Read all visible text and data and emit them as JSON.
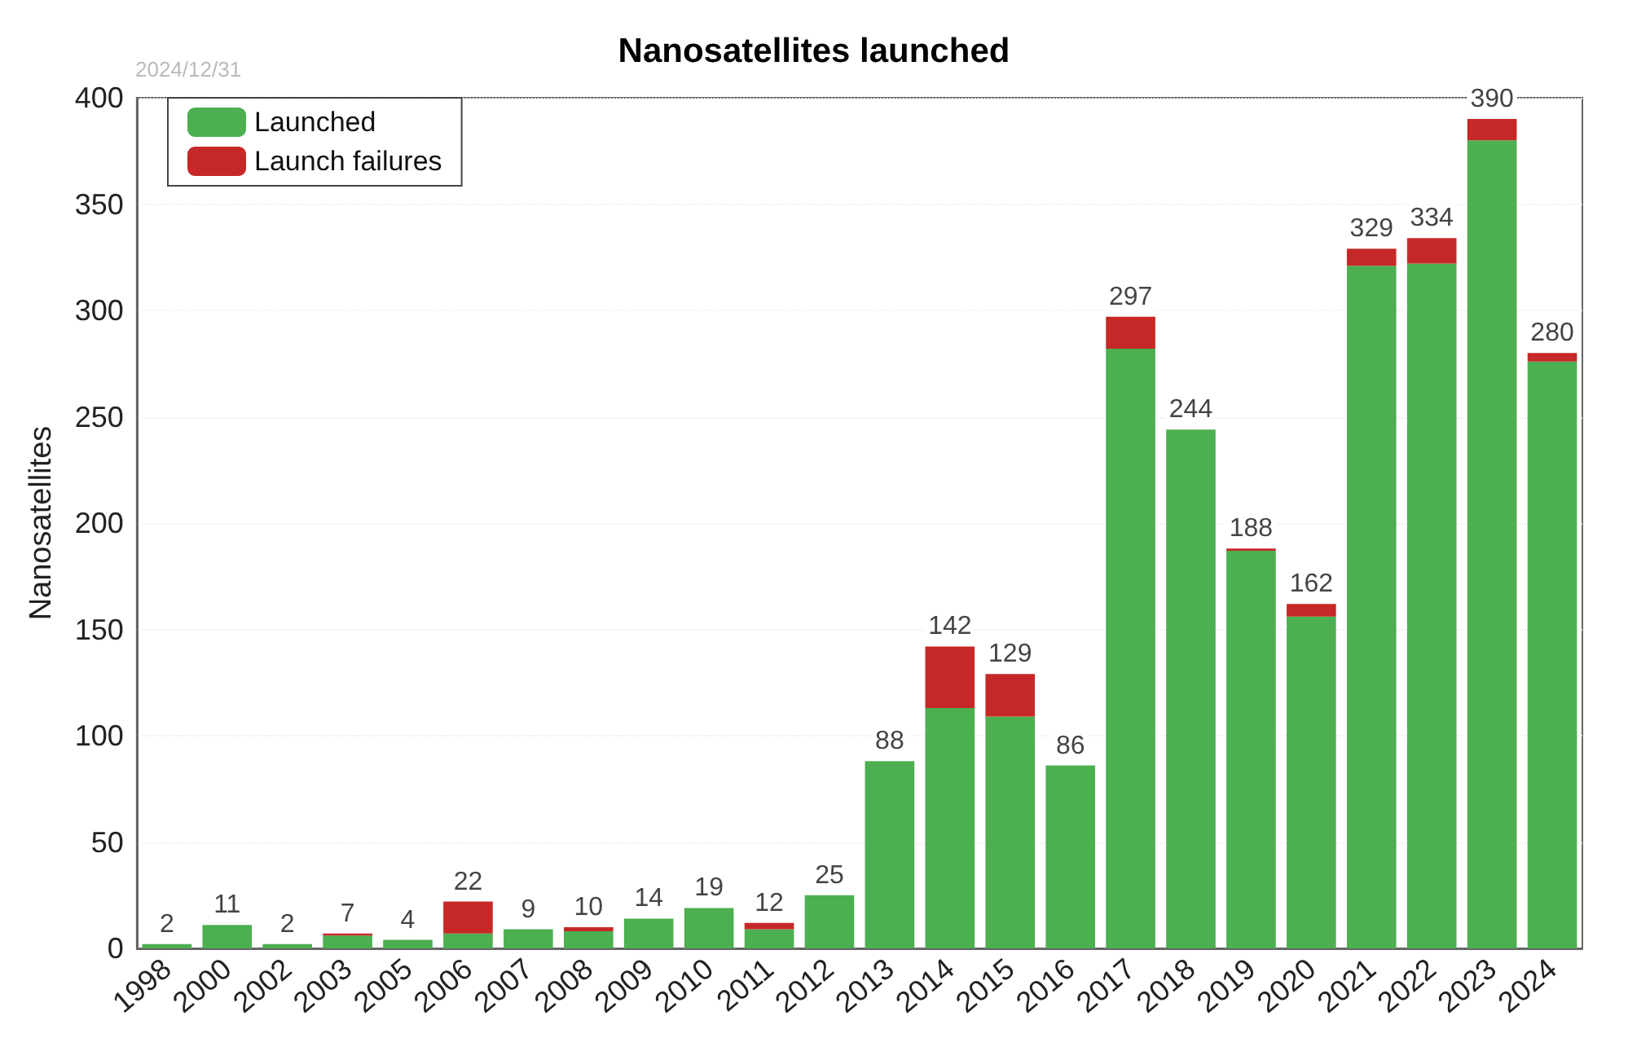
{
  "chart_data": {
    "type": "bar",
    "title": "Nanosatellites launched",
    "ylabel": "Nanosatellites",
    "annotations": [
      "2024/12/31"
    ],
    "categories": [
      "1998",
      "2000",
      "2002",
      "2003",
      "2005",
      "2006",
      "2007",
      "2008",
      "2009",
      "2010",
      "2011",
      "2012",
      "2013",
      "2014",
      "2015",
      "2016",
      "2017",
      "2018",
      "2019",
      "2020",
      "2021",
      "2022",
      "2023",
      "2024"
    ],
    "series": [
      {
        "name": "Launched",
        "color": "#4caf50",
        "values": [
          2,
          11,
          2,
          6,
          4,
          7,
          9,
          8,
          14,
          19,
          9,
          25,
          88,
          113,
          109,
          86,
          282,
          244,
          187,
          156,
          321,
          322,
          380,
          276
        ]
      },
      {
        "name": "Launch failures",
        "color": "#c62828",
        "values": [
          0,
          0,
          0,
          1,
          0,
          15,
          0,
          2,
          0,
          0,
          3,
          0,
          0,
          29,
          20,
          0,
          15,
          0,
          1,
          6,
          8,
          12,
          10,
          4
        ]
      }
    ],
    "stacked": true,
    "totals": [
      "2",
      "11",
      "2",
      "7",
      "4",
      "22",
      "9",
      "10",
      "14",
      "19",
      "12",
      "25",
      "88",
      "142",
      "129",
      "86",
      "297",
      "244",
      "188",
      "162",
      "329",
      "334",
      "390",
      "280"
    ],
    "ylim": [
      0,
      400
    ],
    "yticks": [
      0,
      50,
      100,
      150,
      200,
      250,
      300,
      350,
      400
    ],
    "grid": "y",
    "legend": "top left"
  }
}
